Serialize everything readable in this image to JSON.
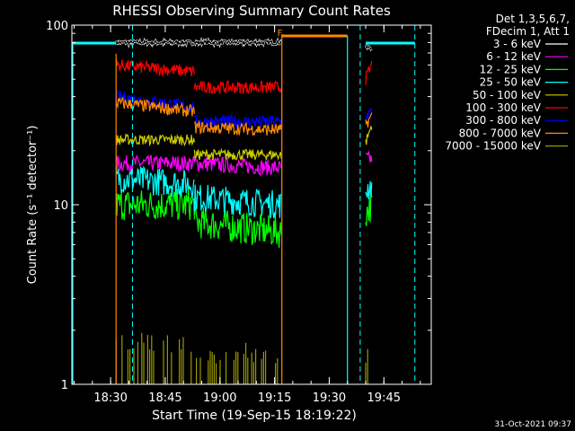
{
  "chart_data": {
    "type": "line",
    "title": "RHESSI Observing Summary Count Rates",
    "xlabel": "Start Time (19-Sep-15 18:19:22)",
    "ylabel": "Count Rate (s⁻¹ detector⁻¹)",
    "y_scale": "log",
    "ylim": [
      1,
      100
    ],
    "xlim": [
      "18:19:22",
      "19:58:00"
    ],
    "x_ticks": [
      "18:30",
      "18:45",
      "19:00",
      "19:15",
      "19:30",
      "19:45"
    ],
    "y_ticks": [
      "1",
      "10",
      "100"
    ],
    "legend_title": [
      "Det 1,3,5,6,7,",
      "FDecim 1, Att 1"
    ],
    "legend_placement": "right",
    "timestamp": "31-Oct-2021 09:37",
    "flag_marker": "F",
    "gaps": [
      [
        "18:19:22",
        "18:31:30"
      ],
      [
        "19:17:00",
        "19:40:00"
      ]
    ],
    "vertical_markers": [
      {
        "time": "18:36:00",
        "color": "#00ffff",
        "style": "dashed"
      },
      {
        "time": "19:38:30",
        "color": "#00ffff",
        "style": "dashed"
      },
      {
        "time": "19:53:30",
        "color": "#00ffff",
        "style": "dashed"
      }
    ],
    "series": [
      {
        "name": "3 - 6 keV",
        "color": "#000000",
        "values": [
          [
            80,
            80
          ],
          [
            80,
            80
          ],
          [
            75,
            75
          ]
        ]
      },
      {
        "name": "6 - 12 keV",
        "color": "#ff00ff",
        "values": [
          [
            17,
            17
          ],
          [
            17,
            16
          ],
          [
            18,
            18
          ]
        ]
      },
      {
        "name": "12 - 25 keV",
        "color": "#00ff00",
        "values": [
          [
            10,
            10
          ],
          [
            8,
            7
          ],
          [
            9,
            10
          ]
        ]
      },
      {
        "name": "25 - 50 keV",
        "color": "#00ffff",
        "values": [
          [
            14,
            13
          ],
          [
            11,
            10
          ],
          [
            12,
            13
          ]
        ]
      },
      {
        "name": "50 - 100 keV",
        "color": "#cccc00",
        "values": [
          [
            23,
            23
          ],
          [
            19,
            19
          ],
          [
            22,
            28
          ]
        ]
      },
      {
        "name": "100 - 300 keV",
        "color": "#ff0000",
        "values": [
          [
            60,
            55
          ],
          [
            45,
            45
          ],
          [
            50,
            60
          ]
        ]
      },
      {
        "name": "300 - 800 keV",
        "color": "#0000ff",
        "values": [
          [
            40,
            35
          ],
          [
            29,
            29
          ],
          [
            31,
            33
          ]
        ]
      },
      {
        "name": "800 - 7000 keV",
        "color": "#ff8800",
        "values": [
          [
            37,
            33
          ],
          [
            27,
            26
          ],
          [
            28,
            31
          ]
        ]
      },
      {
        "name": "7000 - 15000 keV",
        "color": "#999900",
        "values": [
          [
            1.5,
            1.5
          ],
          [
            1.3,
            1.3
          ],
          [
            1.3,
            1.3
          ]
        ]
      }
    ]
  }
}
